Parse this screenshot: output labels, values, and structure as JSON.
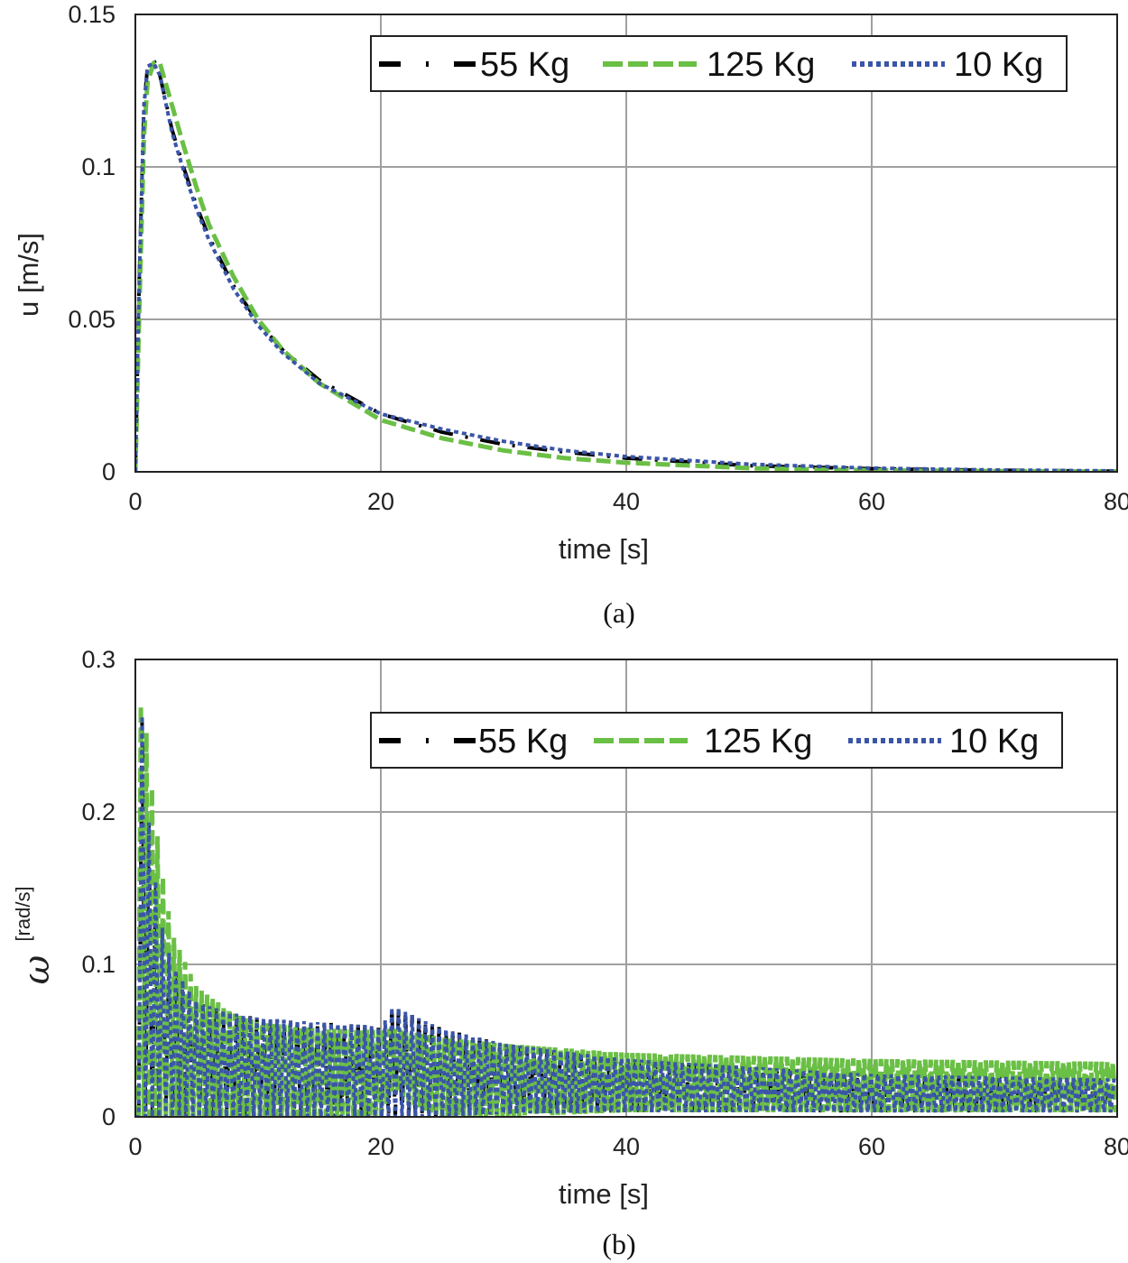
{
  "chart_data": [
    {
      "type": "line",
      "caption": "(a)",
      "xlabel": "time [s]",
      "ylabel": "u [m/s]",
      "xlim": [
        0,
        80
      ],
      "ylim": [
        0,
        0.15
      ],
      "xticks": [
        "0",
        "20",
        "40",
        "60",
        "80"
      ],
      "yticks": [
        "0",
        "0.05",
        "0.1",
        "0.15"
      ],
      "grid": true,
      "legend_placement": "top-right",
      "x": [
        0,
        0.3,
        0.7,
        1,
        1.5,
        2,
        3,
        4,
        5,
        6,
        8,
        10,
        12,
        15,
        20,
        25,
        30,
        35,
        40,
        50,
        60,
        70,
        80
      ],
      "series": [
        {
          "name": "55 Kg",
          "color": "#000000",
          "style": "dash-dot",
          "values": [
            0,
            0.06,
            0.12,
            0.133,
            0.135,
            0.13,
            0.112,
            0.099,
            0.087,
            0.077,
            0.061,
            0.049,
            0.04,
            0.03,
            0.019,
            0.013,
            0.009,
            0.0065,
            0.0045,
            0.002,
            0.001,
            0.0005,
            0.0002
          ]
        },
        {
          "name": "125 Kg",
          "color": "#6abf45",
          "style": "dash",
          "values": [
            0,
            0.05,
            0.11,
            0.128,
            0.134,
            0.134,
            0.12,
            0.106,
            0.093,
            0.081,
            0.064,
            0.05,
            0.04,
            0.029,
            0.017,
            0.011,
            0.007,
            0.0045,
            0.003,
            0.0012,
            0.0005,
            0.0002,
            0.0001
          ]
        },
        {
          "name": "10 Kg",
          "color": "#3a55a8",
          "style": "dot",
          "values": [
            0,
            0.06,
            0.12,
            0.133,
            0.134,
            0.13,
            0.111,
            0.098,
            0.086,
            0.076,
            0.06,
            0.048,
            0.039,
            0.029,
            0.019,
            0.014,
            0.01,
            0.007,
            0.005,
            0.0025,
            0.0012,
            0.0006,
            0.0003
          ]
        }
      ]
    },
    {
      "type": "line",
      "caption": "(b)",
      "xlabel": "time [s]",
      "ylabel_symbol": "ω",
      "ylabel_unit": "[rad/s]",
      "xlim": [
        0,
        80
      ],
      "ylim": [
        0,
        0.3
      ],
      "xticks": [
        "0",
        "20",
        "40",
        "60",
        "80"
      ],
      "yticks": [
        "0",
        "0.1",
        "0.2",
        "0.3"
      ],
      "grid": true,
      "legend_placement": "top-right",
      "x": [
        0,
        0.5,
        1,
        2,
        3,
        5,
        8,
        10,
        15,
        19,
        20,
        21,
        23,
        25,
        30,
        40,
        60,
        80
      ],
      "series": [
        {
          "name": "55 Kg",
          "color": "#000000",
          "style": "dash-dot",
          "upper": [
            0,
            0.27,
            0.2,
            0.13,
            0.1,
            0.075,
            0.068,
            0.065,
            0.062,
            0.06,
            0.058,
            0.073,
            0.065,
            0.058,
            0.048,
            0.038,
            0.028,
            0.025
          ],
          "lower": [
            0,
            0,
            0,
            0,
            0,
            0,
            0,
            0,
            0,
            0,
            0,
            0,
            0,
            0,
            0.002,
            0.003,
            0.003,
            0.003
          ]
        },
        {
          "name": "125 Kg",
          "color": "#6abf45",
          "style": "dash",
          "upper": [
            0,
            0.3,
            0.24,
            0.17,
            0.12,
            0.085,
            0.068,
            0.062,
            0.058,
            0.057,
            0.057,
            0.058,
            0.055,
            0.052,
            0.048,
            0.042,
            0.038,
            0.036
          ],
          "lower": [
            0,
            0,
            0,
            0,
            0,
            0,
            0,
            0,
            0,
            0,
            0,
            0.018,
            0.006,
            0,
            0,
            0.003,
            0.003,
            0.003
          ]
        },
        {
          "name": "10 Kg",
          "color": "#3a55a8",
          "style": "dot",
          "upper": [
            0,
            0.27,
            0.2,
            0.13,
            0.1,
            0.075,
            0.068,
            0.065,
            0.062,
            0.06,
            0.058,
            0.073,
            0.065,
            0.058,
            0.048,
            0.038,
            0.028,
            0.025
          ],
          "lower": [
            0,
            0,
            0,
            0,
            0,
            0,
            0,
            0,
            0,
            0,
            0,
            0,
            0,
            0,
            0.002,
            0.003,
            0.003,
            0.003
          ]
        }
      ]
    }
  ]
}
